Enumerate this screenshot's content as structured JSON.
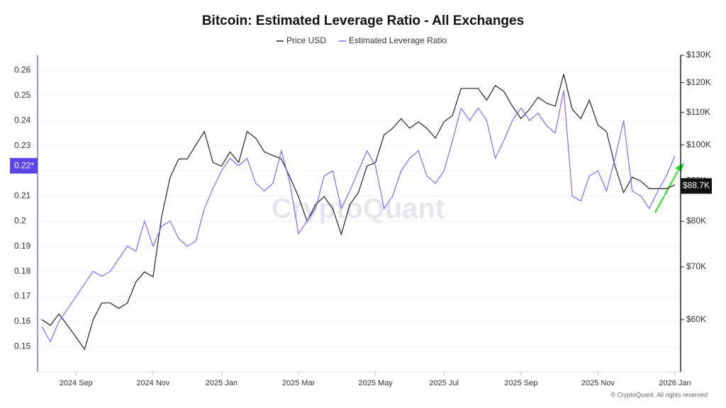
{
  "chart_data": {
    "type": "line",
    "title": "Bitcoin: Estimated Leverage Ratio - All Exchanges",
    "watermark": "CryptoQuant",
    "copyright": "© CryptoQuant. All rights reserved",
    "categories": [
      null,
      null,
      null,
      null,
      "2024 Sep",
      null,
      null,
      null,
      null,
      null,
      null,
      null,
      null,
      "2024 Nov",
      null,
      null,
      null,
      null,
      null,
      null,
      null,
      "2025 Jan",
      null,
      null,
      null,
      null,
      null,
      null,
      null,
      null,
      "2025 Mar",
      null,
      null,
      null,
      null,
      null,
      null,
      null,
      null,
      "2025 May",
      null,
      null,
      null,
      null,
      null,
      null,
      null,
      "2025 Jul",
      null,
      null,
      null,
      null,
      null,
      null,
      null,
      null,
      "2025 Sep",
      null,
      null,
      null,
      null,
      null,
      null,
      null,
      null,
      "2025 Nov",
      null,
      null,
      null,
      null,
      null,
      null,
      null,
      null,
      "2026 Jan"
    ],
    "series": [
      {
        "name": "Price USD",
        "color": "#222222",
        "axis": "y2",
        "values": [
          60000,
          59000,
          61000,
          59000,
          57000,
          55000,
          60000,
          63000,
          63000,
          62000,
          63000,
          67000,
          69000,
          68000,
          81000,
          91000,
          96000,
          96000,
          100000,
          104000,
          95000,
          94000,
          98000,
          95000,
          104000,
          102000,
          98000,
          97000,
          96000,
          91000,
          86000,
          80000,
          84000,
          86000,
          83000,
          77000,
          84000,
          87000,
          94000,
          95000,
          103000,
          105000,
          108000,
          105000,
          107000,
          105000,
          102000,
          107000,
          109000,
          118000,
          118000,
          118000,
          114000,
          119000,
          117000,
          112000,
          108000,
          111000,
          115000,
          113000,
          112000,
          123000,
          111000,
          108000,
          114000,
          106000,
          104000,
          94000,
          87000,
          91000,
          90000,
          88000,
          88000,
          88000,
          89000
        ]
      },
      {
        "name": "Estimated Leverage Ratio",
        "color": "#7b6cf6",
        "values": [
          0.158,
          0.152,
          0.16,
          0.165,
          0.17,
          0.175,
          0.18,
          0.178,
          0.18,
          0.185,
          0.19,
          0.188,
          0.2,
          0.19,
          0.198,
          0.2,
          0.193,
          0.19,
          0.192,
          0.205,
          0.213,
          0.22,
          0.225,
          0.222,
          0.225,
          0.215,
          0.212,
          0.215,
          0.228,
          0.215,
          0.195,
          0.2,
          0.205,
          0.218,
          0.22,
          0.205,
          0.212,
          0.22,
          0.228,
          0.222,
          0.205,
          0.21,
          0.22,
          0.225,
          0.228,
          0.218,
          0.215,
          0.22,
          0.232,
          0.245,
          0.24,
          0.245,
          0.24,
          0.225,
          0.232,
          0.24,
          0.245,
          0.24,
          0.243,
          0.238,
          0.235,
          0.252,
          0.21,
          0.208,
          0.218,
          0.22,
          0.212,
          0.225,
          0.24,
          0.212,
          0.21,
          0.205,
          0.212,
          0.218,
          0.226
        ]
      }
    ],
    "ylim": [
      0.14,
      0.266
    ],
    "yticks": [
      0.15,
      0.16,
      0.17,
      0.18,
      0.19,
      0.2,
      0.21,
      0.22,
      0.23,
      0.24,
      0.25,
      0.26
    ],
    "y2lim": [
      51500,
      130000
    ],
    "y2log": true,
    "y2ticks": [
      {
        "value": 60000,
        "label": "$60K"
      },
      {
        "value": 70000,
        "label": "$70K"
      },
      {
        "value": 80000,
        "label": "$80K"
      },
      {
        "value": 90000,
        "label": "$90K"
      },
      {
        "value": 100000,
        "label": "$100K"
      },
      {
        "value": 110000,
        "label": "$110K"
      },
      {
        "value": 120000,
        "label": "$120K"
      },
      {
        "value": 130000,
        "label": "$130K"
      }
    ],
    "y_marker": {
      "value": 0.222,
      "label": "0.22*"
    },
    "y2_marker": {
      "value": 88700,
      "label": "$88.7K"
    },
    "grid": true,
    "legend": "top"
  }
}
